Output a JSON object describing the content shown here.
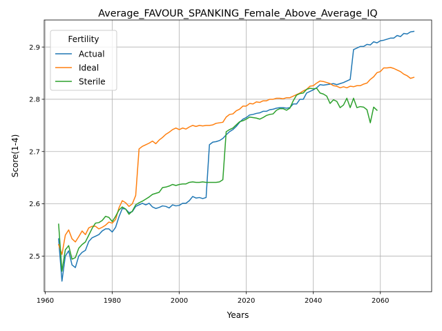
{
  "chart_data": {
    "type": "line",
    "title": "Average_FAVOUR_SPANKING_Female_Above_Average_IQ",
    "xlabel": "Years",
    "ylabel": "Score(1-4)",
    "xlim": [
      1959.7,
      2075.3
    ],
    "ylim": [
      2.4318,
      2.9517
    ],
    "x_ticks": [
      1960,
      1980,
      2000,
      2020,
      2040,
      2060
    ],
    "y_ticks": [
      2.5,
      2.6,
      2.7,
      2.8,
      2.9
    ],
    "grid": true,
    "legend": {
      "title": "Fertility",
      "position": "top-left"
    },
    "series": [
      {
        "name": "Actual",
        "color": "#1f77b4",
        "points": [
          [
            1964,
            2.533
          ],
          [
            1965,
            2.452
          ],
          [
            1966,
            2.5
          ],
          [
            1967,
            2.51
          ],
          [
            1968,
            2.483
          ],
          [
            1969,
            2.478
          ],
          [
            1970,
            2.5
          ],
          [
            1971,
            2.507
          ],
          [
            1972,
            2.511
          ],
          [
            1973,
            2.528
          ],
          [
            1974,
            2.535
          ],
          [
            1975,
            2.538
          ],
          [
            1976,
            2.541
          ],
          [
            1977,
            2.548
          ],
          [
            1978,
            2.552
          ],
          [
            1979,
            2.552
          ],
          [
            1980,
            2.546
          ],
          [
            1981,
            2.555
          ],
          [
            1982,
            2.575
          ],
          [
            1983,
            2.591
          ],
          [
            1984,
            2.59
          ],
          [
            1985,
            2.583
          ],
          [
            1986,
            2.585
          ],
          [
            1987,
            2.595
          ],
          [
            1988,
            2.598
          ],
          [
            1989,
            2.601
          ],
          [
            1990,
            2.598
          ],
          [
            1991,
            2.601
          ],
          [
            1992,
            2.594
          ],
          [
            1993,
            2.591
          ],
          [
            1994,
            2.593
          ],
          [
            1995,
            2.596
          ],
          [
            1996,
            2.595
          ],
          [
            1997,
            2.592
          ],
          [
            1998,
            2.598
          ],
          [
            1999,
            2.596
          ],
          [
            2000,
            2.597
          ],
          [
            2001,
            2.601
          ],
          [
            2002,
            2.601
          ],
          [
            2003,
            2.606
          ],
          [
            2004,
            2.614
          ],
          [
            2005,
            2.611
          ],
          [
            2006,
            2.612
          ],
          [
            2007,
            2.61
          ],
          [
            2008,
            2.612
          ],
          [
            2009,
            2.713
          ],
          [
            2010,
            2.718
          ],
          [
            2011,
            2.719
          ],
          [
            2012,
            2.721
          ],
          [
            2013,
            2.725
          ],
          [
            2014,
            2.732
          ],
          [
            2015,
            2.738
          ],
          [
            2016,
            2.742
          ],
          [
            2017,
            2.748
          ],
          [
            2018,
            2.756
          ],
          [
            2019,
            2.762
          ],
          [
            2020,
            2.765
          ],
          [
            2021,
            2.77
          ],
          [
            2022,
            2.771
          ],
          [
            2023,
            2.773
          ],
          [
            2024,
            2.774
          ],
          [
            2025,
            2.777
          ],
          [
            2026,
            2.777
          ],
          [
            2027,
            2.78
          ],
          [
            2028,
            2.781
          ],
          [
            2029,
            2.783
          ],
          [
            2030,
            2.784
          ],
          [
            2031,
            2.784
          ],
          [
            2032,
            2.783
          ],
          [
            2033,
            2.784
          ],
          [
            2034,
            2.791
          ],
          [
            2035,
            2.791
          ],
          [
            2036,
            2.8
          ],
          [
            2037,
            2.8
          ],
          [
            2038,
            2.812
          ],
          [
            2039,
            2.815
          ],
          [
            2040,
            2.818
          ],
          [
            2041,
            2.822
          ],
          [
            2042,
            2.828
          ],
          [
            2043,
            2.827
          ],
          [
            2044,
            2.828
          ],
          [
            2045,
            2.829
          ],
          [
            2046,
            2.83
          ],
          [
            2047,
            2.828
          ],
          [
            2048,
            2.83
          ],
          [
            2049,
            2.832
          ],
          [
            2050,
            2.835
          ],
          [
            2051,
            2.838
          ],
          [
            2052,
            2.895
          ],
          [
            2053,
            2.898
          ],
          [
            2054,
            2.901
          ],
          [
            2055,
            2.901
          ],
          [
            2056,
            2.905
          ],
          [
            2057,
            2.904
          ],
          [
            2058,
            2.91
          ],
          [
            2059,
            2.908
          ],
          [
            2060,
            2.912
          ],
          [
            2061,
            2.913
          ],
          [
            2062,
            2.915
          ],
          [
            2063,
            2.917
          ],
          [
            2064,
            2.917
          ],
          [
            2065,
            2.922
          ],
          [
            2066,
            2.92
          ],
          [
            2067,
            2.926
          ],
          [
            2068,
            2.925
          ],
          [
            2069,
            2.929
          ],
          [
            2070,
            2.93
          ]
        ]
      },
      {
        "name": "Ideal",
        "color": "#ff7f0e",
        "points": [
          [
            1964,
            2.522
          ],
          [
            1965,
            2.503
          ],
          [
            1966,
            2.54
          ],
          [
            1967,
            2.55
          ],
          [
            1968,
            2.533
          ],
          [
            1969,
            2.527
          ],
          [
            1970,
            2.537
          ],
          [
            1971,
            2.548
          ],
          [
            1972,
            2.541
          ],
          [
            1973,
            2.554
          ],
          [
            1974,
            2.557
          ],
          [
            1975,
            2.557
          ],
          [
            1976,
            2.552
          ],
          [
            1977,
            2.555
          ],
          [
            1978,
            2.559
          ],
          [
            1979,
            2.565
          ],
          [
            1980,
            2.563
          ],
          [
            1981,
            2.57
          ],
          [
            1982,
            2.592
          ],
          [
            1983,
            2.606
          ],
          [
            1984,
            2.602
          ],
          [
            1985,
            2.595
          ],
          [
            1986,
            2.6
          ],
          [
            1987,
            2.616
          ],
          [
            1988,
            2.705
          ],
          [
            1989,
            2.71
          ],
          [
            1990,
            2.713
          ],
          [
            1991,
            2.716
          ],
          [
            1992,
            2.72
          ],
          [
            1993,
            2.715
          ],
          [
            1994,
            2.722
          ],
          [
            1995,
            2.727
          ],
          [
            1996,
            2.733
          ],
          [
            1997,
            2.737
          ],
          [
            1998,
            2.742
          ],
          [
            1999,
            2.745
          ],
          [
            2000,
            2.742
          ],
          [
            2001,
            2.745
          ],
          [
            2002,
            2.743
          ],
          [
            2003,
            2.747
          ],
          [
            2004,
            2.75
          ],
          [
            2005,
            2.748
          ],
          [
            2006,
            2.75
          ],
          [
            2007,
            2.749
          ],
          [
            2008,
            2.75
          ],
          [
            2009,
            2.75
          ],
          [
            2010,
            2.751
          ],
          [
            2011,
            2.754
          ],
          [
            2012,
            2.755
          ],
          [
            2013,
            2.756
          ],
          [
            2014,
            2.766
          ],
          [
            2015,
            2.771
          ],
          [
            2016,
            2.772
          ],
          [
            2017,
            2.778
          ],
          [
            2018,
            2.781
          ],
          [
            2019,
            2.787
          ],
          [
            2020,
            2.787
          ],
          [
            2021,
            2.792
          ],
          [
            2022,
            2.791
          ],
          [
            2023,
            2.795
          ],
          [
            2024,
            2.794
          ],
          [
            2025,
            2.797
          ],
          [
            2026,
            2.797
          ],
          [
            2027,
            2.8
          ],
          [
            2028,
            2.8
          ],
          [
            2029,
            2.802
          ],
          [
            2030,
            2.802
          ],
          [
            2031,
            2.801
          ],
          [
            2032,
            2.803
          ],
          [
            2033,
            2.803
          ],
          [
            2034,
            2.806
          ],
          [
            2035,
            2.809
          ],
          [
            2036,
            2.812
          ],
          [
            2037,
            2.816
          ],
          [
            2038,
            2.819
          ],
          [
            2039,
            2.825
          ],
          [
            2040,
            2.826
          ],
          [
            2041,
            2.831
          ],
          [
            2042,
            2.835
          ],
          [
            2043,
            2.834
          ],
          [
            2044,
            2.832
          ],
          [
            2045,
            2.83
          ],
          [
            2046,
            2.826
          ],
          [
            2047,
            2.825
          ],
          [
            2048,
            2.822
          ],
          [
            2049,
            2.824
          ],
          [
            2050,
            2.822
          ],
          [
            2051,
            2.825
          ],
          [
            2052,
            2.824
          ],
          [
            2053,
            2.826
          ],
          [
            2054,
            2.826
          ],
          [
            2055,
            2.829
          ],
          [
            2056,
            2.831
          ],
          [
            2057,
            2.838
          ],
          [
            2058,
            2.843
          ],
          [
            2059,
            2.851
          ],
          [
            2060,
            2.853
          ],
          [
            2061,
            2.86
          ],
          [
            2062,
            2.86
          ],
          [
            2063,
            2.861
          ],
          [
            2064,
            2.859
          ],
          [
            2065,
            2.856
          ],
          [
            2066,
            2.853
          ],
          [
            2067,
            2.848
          ],
          [
            2068,
            2.845
          ],
          [
            2069,
            2.84
          ],
          [
            2070,
            2.842
          ]
        ]
      },
      {
        "name": "Sterile",
        "color": "#2ca02c",
        "points": [
          [
            1964,
            2.561
          ],
          [
            1965,
            2.471
          ],
          [
            1966,
            2.512
          ],
          [
            1967,
            2.52
          ],
          [
            1968,
            2.494
          ],
          [
            1969,
            2.497
          ],
          [
            1970,
            2.515
          ],
          [
            1971,
            2.522
          ],
          [
            1972,
            2.527
          ],
          [
            1973,
            2.54
          ],
          [
            1974,
            2.553
          ],
          [
            1975,
            2.563
          ],
          [
            1976,
            2.564
          ],
          [
            1977,
            2.568
          ],
          [
            1978,
            2.576
          ],
          [
            1979,
            2.574
          ],
          [
            1980,
            2.566
          ],
          [
            1981,
            2.576
          ],
          [
            1982,
            2.588
          ],
          [
            1983,
            2.594
          ],
          [
            1984,
            2.59
          ],
          [
            1985,
            2.58
          ],
          [
            1986,
            2.586
          ],
          [
            1987,
            2.598
          ],
          [
            1988,
            2.602
          ],
          [
            1989,
            2.605
          ],
          [
            1990,
            2.609
          ],
          [
            1991,
            2.613
          ],
          [
            1992,
            2.618
          ],
          [
            1993,
            2.62
          ],
          [
            1994,
            2.622
          ],
          [
            1995,
            2.631
          ],
          [
            1996,
            2.632
          ],
          [
            1997,
            2.634
          ],
          [
            1998,
            2.637
          ],
          [
            1999,
            2.635
          ],
          [
            2000,
            2.637
          ],
          [
            2001,
            2.638
          ],
          [
            2002,
            2.638
          ],
          [
            2003,
            2.641
          ],
          [
            2004,
            2.642
          ],
          [
            2005,
            2.641
          ],
          [
            2006,
            2.641
          ],
          [
            2007,
            2.642
          ],
          [
            2008,
            2.641
          ],
          [
            2009,
            2.641
          ],
          [
            2010,
            2.641
          ],
          [
            2011,
            2.641
          ],
          [
            2012,
            2.642
          ],
          [
            2013,
            2.646
          ],
          [
            2014,
            2.738
          ],
          [
            2015,
            2.742
          ],
          [
            2016,
            2.745
          ],
          [
            2017,
            2.751
          ],
          [
            2018,
            2.757
          ],
          [
            2019,
            2.759
          ],
          [
            2020,
            2.762
          ],
          [
            2021,
            2.766
          ],
          [
            2022,
            2.765
          ],
          [
            2023,
            2.764
          ],
          [
            2024,
            2.762
          ],
          [
            2025,
            2.765
          ],
          [
            2026,
            2.769
          ],
          [
            2027,
            2.771
          ],
          [
            2028,
            2.772
          ],
          [
            2029,
            2.779
          ],
          [
            2030,
            2.782
          ],
          [
            2031,
            2.782
          ],
          [
            2032,
            2.779
          ],
          [
            2033,
            2.783
          ],
          [
            2034,
            2.797
          ],
          [
            2035,
            2.808
          ],
          [
            2036,
            2.811
          ],
          [
            2037,
            2.812
          ],
          [
            2038,
            2.819
          ],
          [
            2039,
            2.821
          ],
          [
            2040,
            2.82
          ],
          [
            2041,
            2.821
          ],
          [
            2042,
            2.812
          ],
          [
            2043,
            2.81
          ],
          [
            2044,
            2.806
          ],
          [
            2045,
            2.792
          ],
          [
            2046,
            2.799
          ],
          [
            2047,
            2.796
          ],
          [
            2048,
            2.784
          ],
          [
            2049,
            2.789
          ],
          [
            2050,
            2.802
          ],
          [
            2051,
            2.784
          ],
          [
            2052,
            2.802
          ],
          [
            2053,
            2.784
          ],
          [
            2054,
            2.786
          ],
          [
            2055,
            2.785
          ],
          [
            2056,
            2.78
          ],
          [
            2057,
            2.755
          ],
          [
            2058,
            2.785
          ],
          [
            2059,
            2.779
          ]
        ]
      }
    ]
  }
}
